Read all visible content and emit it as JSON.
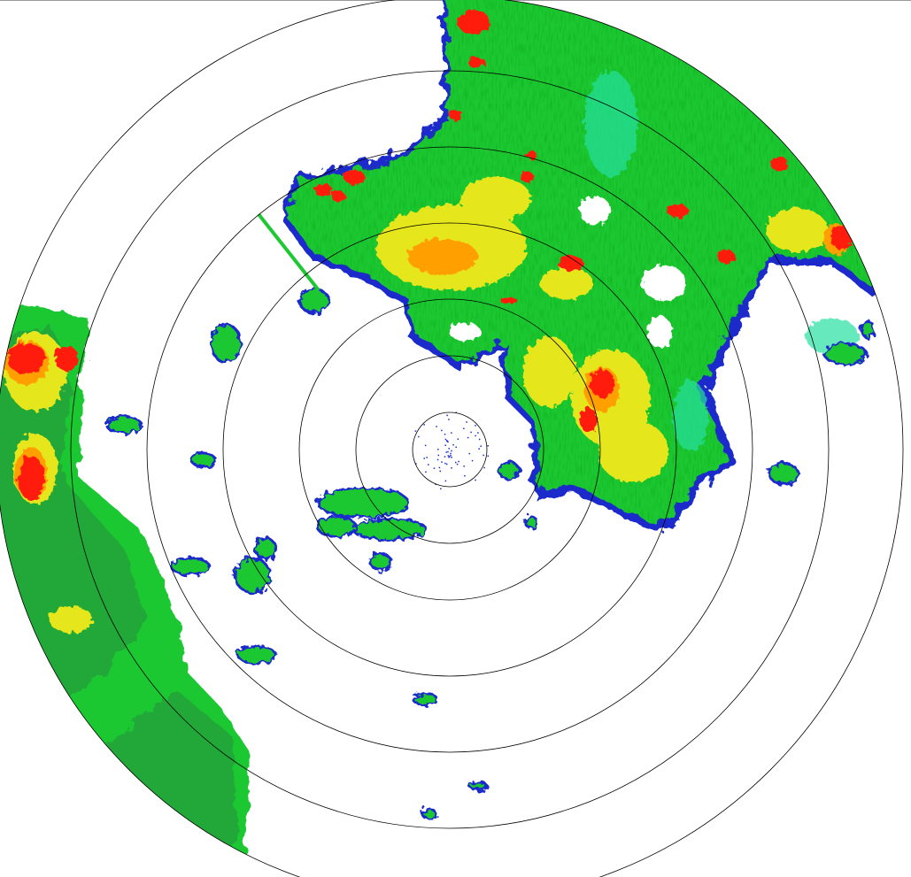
{
  "radar": {
    "palette": {
      "weak": "#1a2ccc",
      "light": "#26e0a0",
      "moderate": "#1ec832",
      "moderate_dark": "#22a838",
      "heavy": "#e6e61e",
      "strong": "#ffa000",
      "intense": "#ff1e10"
    },
    "ring_color": "#000000",
    "background": "#ffffff"
  }
}
